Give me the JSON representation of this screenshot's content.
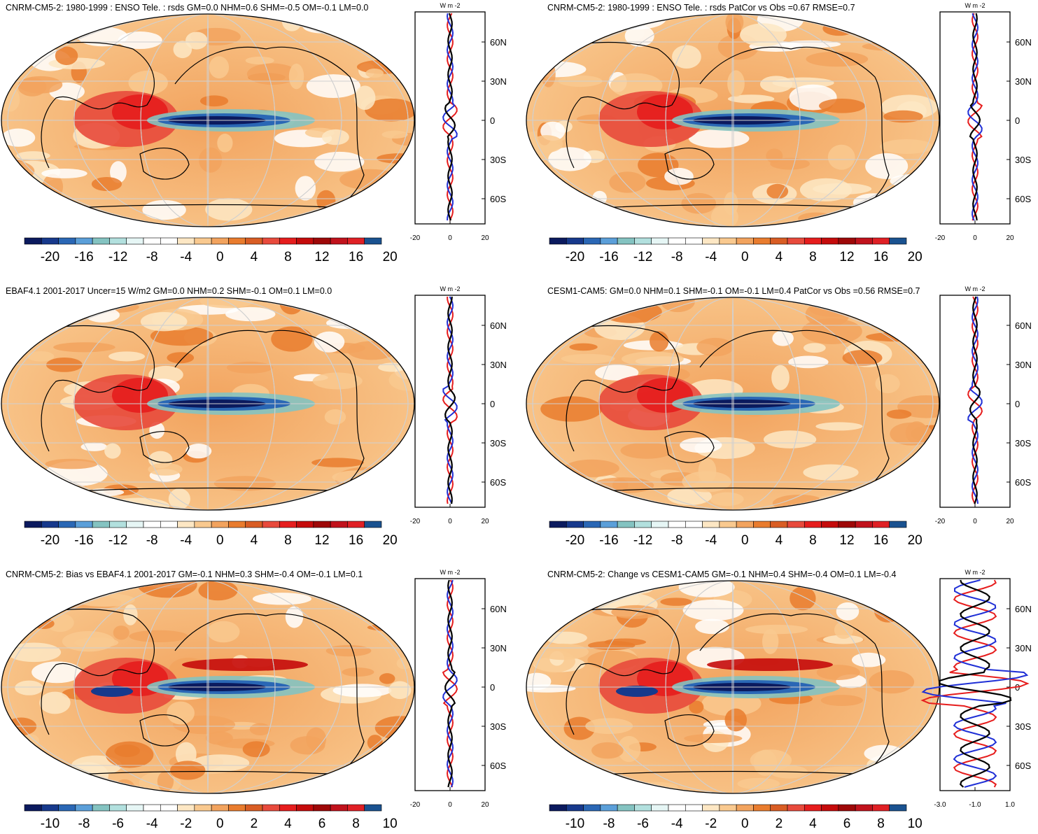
{
  "panels": [
    {
      "title": "CNRM-CM5-2: 1980-1999 : ENSO Tele. : rsds GM=0.0 NHM=0.6 SHM=-0.5 OM=-0.1 LM=0.0",
      "colorbar_labels": [
        "-20",
        "-16",
        "-12",
        "-8",
        "-4",
        "0",
        "4",
        "8",
        "12",
        "16",
        "20"
      ],
      "profile_xticks": [
        "-20",
        "0",
        "20"
      ]
    },
    {
      "title": "CNRM-CM5-2: 1980-1999 : ENSO Tele. : rsds PatCor vs Obs =0.67 RMSE=0.7",
      "colorbar_labels": [
        "-20",
        "-16",
        "-12",
        "-8",
        "-4",
        "0",
        "4",
        "8",
        "12",
        "16",
        "20"
      ],
      "profile_xticks": [
        "-20",
        "0",
        "20"
      ]
    },
    {
      "title": "EBAF4.1 2001-2017 Uncer=15 W/m2 GM=0.0 NHM=0.2 SHM=-0.1 OM=0.1 LM=0.0",
      "colorbar_labels": [
        "-20",
        "-16",
        "-12",
        "-8",
        "-4",
        "0",
        "4",
        "8",
        "12",
        "16",
        "20"
      ],
      "profile_xticks": [
        "-20",
        "0",
        "20"
      ]
    },
    {
      "title": "CESM1-CAM5: GM=0.0 NHM=0.1 SHM=-0.1 OM=-0.1 LM=0.4 PatCor vs Obs =0.56 RMSE=0.7",
      "colorbar_labels": [
        "-20",
        "-16",
        "-12",
        "-8",
        "-4",
        "0",
        "4",
        "8",
        "12",
        "16",
        "20"
      ],
      "profile_xticks": [
        "-20",
        "0",
        "20"
      ]
    },
    {
      "title": "CNRM-CM5-2: Bias vs EBAF4.1 2001-2017 GM=-0.1 NHM=0.3 SHM=-0.4 OM=-0.1 LM=0.1",
      "colorbar_labels": [
        "-10",
        "-8",
        "-6",
        "-4",
        "-2",
        "0",
        "2",
        "4",
        "6",
        "8",
        "10"
      ],
      "profile_xticks": [
        "-20",
        "0",
        "20"
      ]
    },
    {
      "title": "CNRM-CM5-2: Change vs CESM1-CAM5 GM=-0.1 NHM=0.4 SHM=-0.4 OM=0.1 LM=-0.4",
      "colorbar_labels": [
        "-10",
        "-8",
        "-6",
        "-4",
        "-2",
        "0",
        "2",
        "4",
        "6",
        "8",
        "10"
      ],
      "profile_xticks": [
        "-3.0",
        "-1.0",
        "1.0"
      ]
    }
  ],
  "profile_units": "W m",
  "profile_units_exp": "-2",
  "latitude_ticks": [
    "60N",
    "30N",
    "0",
    "30S",
    "60S"
  ],
  "chart_data": {
    "type": "heatmap",
    "variable": "rsds",
    "description_units": "W m-2",
    "colorscale_top_rows": [
      -20,
      20
    ],
    "colorscale_bottom_row": [
      -10,
      10
    ],
    "colors": [
      "#0b1a5e",
      "#17398c",
      "#2a67b5",
      "#5b9fd9",
      "#84c3c1",
      "#b2e0de",
      "#e6f6f5",
      "#ffffff",
      "#fde7c4",
      "#f9c98f",
      "#f2a35e",
      "#e97c2e",
      "#d95d24",
      "#e84a3c",
      "#e61d1d",
      "#c50b0b",
      "#9e0808",
      "#c1121c",
      "#e02025",
      "#1a5290"
    ],
    "zonal_profile_series": [
      "model (red)",
      "reference (blue)",
      "mean (black)"
    ]
  }
}
